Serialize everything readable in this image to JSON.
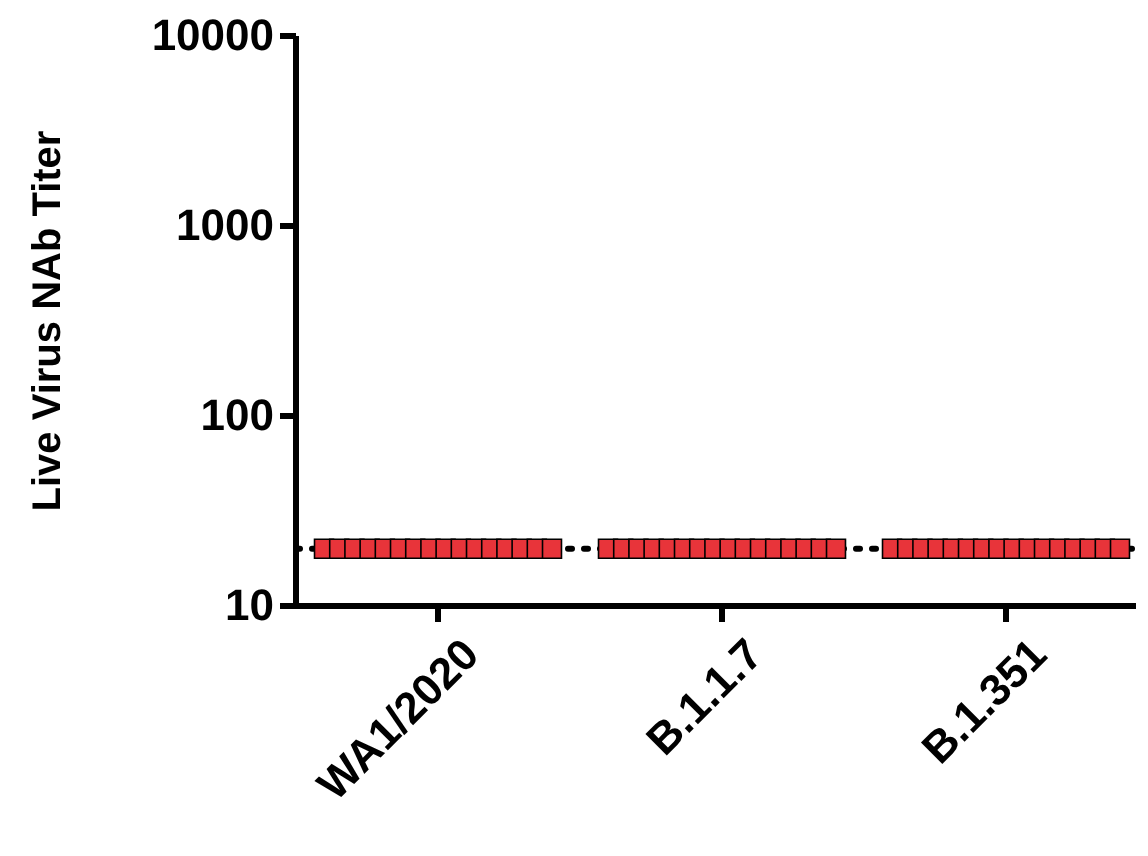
{
  "chart_data": {
    "type": "scatter",
    "ylabel": "Live Virus NAb Titer",
    "categories": [
      "WA1/2020",
      "B.1.1.7",
      "B.1.351"
    ],
    "log": true,
    "ylim": [
      10,
      10000
    ],
    "yticks": [
      10,
      100,
      1000,
      10000
    ],
    "marker": "square",
    "grid": false,
    "ref_lines": [
      {
        "axis": "y",
        "value": 20,
        "line_style": "dotted",
        "color": "#000000"
      }
    ],
    "series": [
      {
        "color": "#e8343a",
        "x": [
          "WA1/2020",
          "WA1/2020",
          "WA1/2020",
          "WA1/2020",
          "WA1/2020",
          "WA1/2020",
          "WA1/2020",
          "WA1/2020",
          "WA1/2020",
          "WA1/2020",
          "WA1/2020",
          "WA1/2020",
          "WA1/2020",
          "WA1/2020",
          "WA1/2020",
          "WA1/2020",
          "B.1.1.7",
          "B.1.1.7",
          "B.1.1.7",
          "B.1.1.7",
          "B.1.1.7",
          "B.1.1.7",
          "B.1.1.7",
          "B.1.1.7",
          "B.1.1.7",
          "B.1.1.7",
          "B.1.1.7",
          "B.1.1.7",
          "B.1.1.7",
          "B.1.1.7",
          "B.1.1.7",
          "B.1.1.7",
          "B.1.351",
          "B.1.351",
          "B.1.351",
          "B.1.351",
          "B.1.351",
          "B.1.351",
          "B.1.351",
          "B.1.351",
          "B.1.351",
          "B.1.351",
          "B.1.351",
          "B.1.351",
          "B.1.351",
          "B.1.351",
          "B.1.351",
          "B.1.351"
        ],
        "values": [
          20,
          20,
          20,
          20,
          20,
          20,
          20,
          20,
          20,
          20,
          20,
          20,
          20,
          20,
          20,
          20,
          20,
          20,
          20,
          20,
          20,
          20,
          20,
          20,
          20,
          20,
          20,
          20,
          20,
          20,
          20,
          20,
          20,
          20,
          20,
          20,
          20,
          20,
          20,
          20,
          20,
          20,
          20,
          20,
          20,
          20,
          20,
          20
        ]
      }
    ]
  }
}
